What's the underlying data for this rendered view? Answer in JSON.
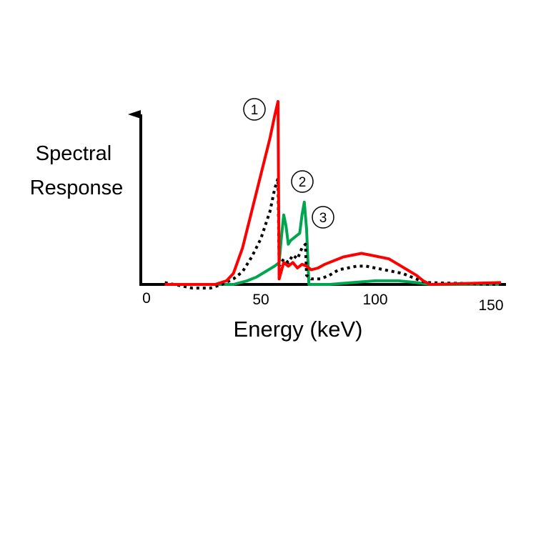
{
  "chart_data": {
    "type": "line",
    "title": "",
    "ylabel_lines": [
      "Spectral",
      "Response"
    ],
    "xlabel": "Energy (keV)",
    "xlim": [
      0,
      150
    ],
    "ylim": [
      0,
      1
    ],
    "grid": false,
    "x_ticks": [
      {
        "value": 0,
        "label": "0"
      },
      {
        "value": 50,
        "label": "50"
      },
      {
        "value": 100,
        "label": "100"
      },
      {
        "value": 150,
        "label": "150"
      }
    ],
    "series": [
      {
        "marker_label": "1",
        "color": "#ff0000",
        "style": "solid",
        "points": [
          [
            8,
            0.0
          ],
          [
            30,
            0.0
          ],
          [
            35,
            0.02
          ],
          [
            38,
            0.06
          ],
          [
            42,
            0.2
          ],
          [
            46,
            0.4
          ],
          [
            50,
            0.6
          ],
          [
            54,
            0.8
          ],
          [
            56,
            0.92
          ],
          [
            57.5,
            1.0
          ],
          [
            58,
            0.03
          ],
          [
            60,
            0.12
          ],
          [
            62,
            0.1
          ],
          [
            64,
            0.12
          ],
          [
            66,
            0.09
          ],
          [
            68,
            0.11
          ],
          [
            70,
            0.1
          ],
          [
            72,
            0.08
          ],
          [
            75,
            0.09
          ],
          [
            78,
            0.11
          ],
          [
            82,
            0.13
          ],
          [
            86,
            0.15
          ],
          [
            90,
            0.16
          ],
          [
            94,
            0.17
          ],
          [
            98,
            0.16
          ],
          [
            102,
            0.15
          ],
          [
            106,
            0.14
          ],
          [
            110,
            0.11
          ],
          [
            114,
            0.08
          ],
          [
            118,
            0.05
          ],
          [
            121,
            0.02
          ],
          [
            124,
            0.0
          ],
          [
            155,
            0.01
          ]
        ]
      },
      {
        "marker_label": "2",
        "color": "#000000",
        "style": "dotted",
        "points": [
          [
            8,
            0.01
          ],
          [
            20,
            -0.02
          ],
          [
            28,
            -0.02
          ],
          [
            33,
            0.0
          ],
          [
            38,
            0.03
          ],
          [
            42,
            0.07
          ],
          [
            46,
            0.15
          ],
          [
            50,
            0.25
          ],
          [
            54,
            0.4
          ],
          [
            56,
            0.52
          ],
          [
            57.5,
            0.58
          ],
          [
            58,
            0.1
          ],
          [
            60,
            0.14
          ],
          [
            62,
            0.12
          ],
          [
            64,
            0.16
          ],
          [
            66,
            0.14
          ],
          [
            68,
            0.2
          ],
          [
            69.5,
            0.22
          ],
          [
            70,
            0.05
          ],
          [
            72,
            0.03
          ],
          [
            76,
            0.03
          ],
          [
            80,
            0.05
          ],
          [
            84,
            0.08
          ],
          [
            88,
            0.09
          ],
          [
            92,
            0.1
          ],
          [
            96,
            0.1
          ],
          [
            100,
            0.09
          ],
          [
            104,
            0.08
          ],
          [
            108,
            0.07
          ],
          [
            112,
            0.06
          ],
          [
            116,
            0.04
          ],
          [
            120,
            0.02
          ],
          [
            123,
            0.01
          ],
          [
            155,
            0.0
          ]
        ]
      },
      {
        "marker_label": "3",
        "color": "#00a64f",
        "style": "solid",
        "points": [
          [
            8,
            0.0
          ],
          [
            32,
            0.0
          ],
          [
            38,
            0.0
          ],
          [
            44,
            0.02
          ],
          [
            48,
            0.04
          ],
          [
            52,
            0.07
          ],
          [
            56,
            0.1
          ],
          [
            58,
            0.12
          ],
          [
            59,
            0.26
          ],
          [
            60,
            0.38
          ],
          [
            61,
            0.32
          ],
          [
            62,
            0.22
          ],
          [
            63,
            0.24
          ],
          [
            65,
            0.26
          ],
          [
            67,
            0.28
          ],
          [
            68,
            0.38
          ],
          [
            69,
            0.45
          ],
          [
            70,
            0.3
          ],
          [
            71,
            0.0
          ],
          [
            80,
            0.0
          ],
          [
            90,
            0.01
          ],
          [
            100,
            0.02
          ],
          [
            110,
            0.02
          ],
          [
            118,
            0.01
          ],
          [
            124,
            0.0
          ],
          [
            155,
            0.0
          ]
        ]
      }
    ]
  }
}
